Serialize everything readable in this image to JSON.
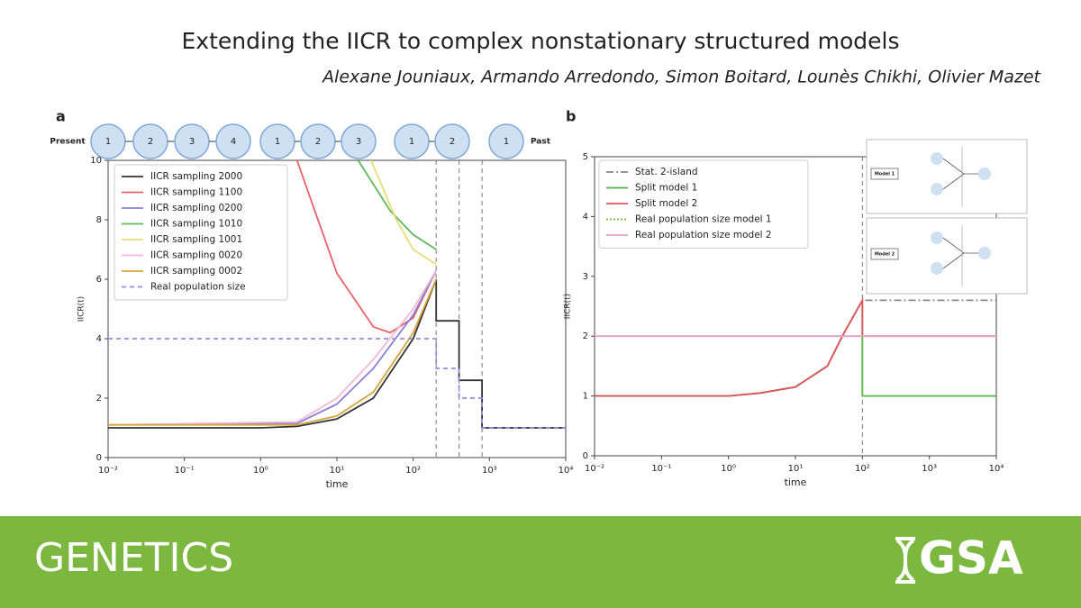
{
  "header": {
    "title": "Extending the IICR to complex nonstationary structured models",
    "authors": "Alexane Jouniaux, Armando Arredondo, Simon Boitard, Lounès Chikhi, Olivier Mazet"
  },
  "demography": {
    "start": "Present",
    "end": "Past",
    "groups": [
      [
        "1",
        "2",
        "3",
        "4"
      ],
      [
        "1",
        "2",
        "3"
      ],
      [
        "1",
        "2"
      ],
      [
        "1"
      ]
    ]
  },
  "insets": [
    "Model 1",
    "Model 2"
  ],
  "chart_data": [
    {
      "type": "line",
      "panel": "a",
      "xlabel": "time",
      "ylabel": "IICR(t)",
      "xscale": "log",
      "xlim": [
        0.01,
        10000
      ],
      "ylim": [
        0,
        10
      ],
      "xticks": [
        {
          "value": 0.01,
          "label": "10⁻²"
        },
        {
          "value": 0.1,
          "label": "10⁻¹"
        },
        {
          "value": 1,
          "label": "10⁰"
        },
        {
          "value": 10,
          "label": "10¹"
        },
        {
          "value": 100,
          "label": "10²"
        },
        {
          "value": 1000,
          "label": "10³"
        },
        {
          "value": 10000,
          "label": "10⁴"
        }
      ],
      "yticks": [
        0,
        2,
        4,
        6,
        8,
        10
      ],
      "vlines": [
        200,
        400,
        800
      ],
      "legend": "upper left",
      "series": [
        {
          "name": "IICR sampling 2000",
          "color": "#333333",
          "style": "solid",
          "x": [
            0.01,
            1,
            3,
            10,
            30,
            100,
            200,
            200,
            400,
            400,
            800,
            800,
            10000
          ],
          "values": [
            1,
            1,
            1.05,
            1.3,
            2,
            4,
            6,
            4.6,
            4.6,
            2.6,
            2.6,
            1,
            1
          ]
        },
        {
          "name": "IICR sampling 1100",
          "color": "#e8606a",
          "style": "solid",
          "x": [
            3,
            10,
            30,
            50,
            100,
            200
          ],
          "values": [
            10,
            6.2,
            4.4,
            4.2,
            4.7,
            6.3
          ]
        },
        {
          "name": "IICR sampling 0200",
          "color": "#8a80d8",
          "style": "solid",
          "x": [
            0.01,
            3,
            10,
            30,
            100,
            200
          ],
          "values": [
            1.1,
            1.15,
            1.8,
            3,
            4.8,
            6.3
          ]
        },
        {
          "name": "IICR sampling 1010",
          "color": "#5fb85a",
          "style": "solid",
          "x": [
            19,
            50,
            100,
            200
          ],
          "values": [
            10,
            8.3,
            7.5,
            7
          ]
        },
        {
          "name": "IICR sampling 1001",
          "color": "#e6dd78",
          "style": "solid",
          "x": [
            28,
            60,
            100,
            200
          ],
          "values": [
            10,
            8,
            7,
            6.5
          ]
        },
        {
          "name": "IICR sampling 0020",
          "color": "#f3b8d6",
          "style": "solid",
          "x": [
            0.01,
            3,
            10,
            30,
            100,
            200
          ],
          "values": [
            1.1,
            1.2,
            2,
            3.3,
            5,
            6.3
          ]
        },
        {
          "name": "IICR sampling 0002",
          "color": "#d9a43a",
          "style": "solid",
          "x": [
            0.01,
            3,
            10,
            30,
            100,
            200
          ],
          "values": [
            1.1,
            1.1,
            1.4,
            2.2,
            4.2,
            6
          ]
        },
        {
          "name": "Real population size",
          "color": "#8f8fe8",
          "style": "dashed",
          "x": [
            0.01,
            200,
            200,
            400,
            400,
            800,
            800,
            10000
          ],
          "values": [
            4,
            4,
            3,
            3,
            2,
            2,
            1,
            1
          ]
        }
      ]
    },
    {
      "type": "line",
      "panel": "b",
      "xlabel": "time",
      "ylabel": "IICR(t)",
      "xscale": "log",
      "xlim": [
        0.01,
        10000
      ],
      "ylim": [
        0,
        5
      ],
      "xticks": [
        {
          "value": 0.01,
          "label": "10⁻²"
        },
        {
          "value": 0.1,
          "label": "10⁻¹"
        },
        {
          "value": 1,
          "label": "10⁰"
        },
        {
          "value": 10,
          "label": "10¹"
        },
        {
          "value": 100,
          "label": "10²"
        },
        {
          "value": 1000,
          "label": "10³"
        },
        {
          "value": 10000,
          "label": "10⁴"
        }
      ],
      "yticks": [
        0,
        1,
        2,
        3,
        4,
        5
      ],
      "vlines": [
        100
      ],
      "legend": "upper left",
      "series": [
        {
          "name": "Stat. 2-island",
          "color": "#888888",
          "style": "dashdot",
          "x": [
            0.01,
            1,
            3,
            10,
            30,
            50,
            100,
            10000
          ],
          "values": [
            1,
            1,
            1.05,
            1.15,
            1.5,
            2,
            2.6,
            2.6
          ]
        },
        {
          "name": "Split model 1",
          "color": "#4fae4f",
          "style": "solid",
          "x": [
            0.01,
            1,
            3,
            10,
            30,
            50,
            100,
            100,
            10000
          ],
          "values": [
            1,
            1,
            1.05,
            1.15,
            1.5,
            2,
            2.6,
            1,
            1
          ]
        },
        {
          "name": "Split model 2",
          "color": "#e0545a",
          "style": "solid",
          "x": [
            0.01,
            1,
            3,
            10,
            30,
            50,
            100,
            100,
            10000
          ],
          "values": [
            1,
            1,
            1.05,
            1.15,
            1.5,
            2,
            2.6,
            2,
            2
          ]
        },
        {
          "name": "Real population size model 1",
          "color": "#6cbf4f",
          "style": "dotted",
          "x": [
            0.01,
            100,
            100,
            10000
          ],
          "values": [
            2,
            2,
            1,
            1
          ]
        },
        {
          "name": "Real population size model 2",
          "color": "#e6a2c8",
          "style": "solid",
          "x": [
            0.01,
            100,
            10000
          ],
          "values": [
            2,
            2,
            2
          ]
        }
      ]
    }
  ],
  "footer": {
    "journal": "GENETICS",
    "logo": "GSA"
  }
}
